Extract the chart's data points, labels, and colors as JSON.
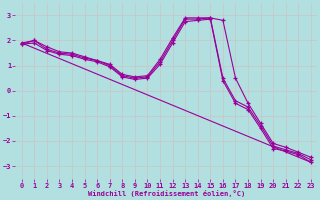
{
  "xlabel": "Windchill (Refroidissement éolien,°C)",
  "bg_color": "#b2e0e0",
  "grid_color": "#c8c8c8",
  "line_color": "#990099",
  "xlim": [
    -0.5,
    23.5
  ],
  "ylim": [
    -3.5,
    3.5
  ],
  "yticks": [
    -3,
    -2,
    -1,
    0,
    1,
    2,
    3
  ],
  "xticks": [
    0,
    1,
    2,
    3,
    4,
    5,
    6,
    7,
    8,
    9,
    10,
    11,
    12,
    13,
    14,
    15,
    16,
    17,
    18,
    19,
    20,
    21,
    22,
    23
  ],
  "series": [
    {
      "x": [
        0,
        1,
        2,
        3,
        4,
        5,
        6,
        7,
        8,
        9,
        10,
        11,
        12,
        13,
        14,
        15,
        16,
        17,
        18,
        19,
        20,
        21,
        22,
        23
      ],
      "y": [
        1.9,
        2.0,
        1.75,
        1.55,
        1.5,
        1.35,
        1.2,
        1.05,
        0.65,
        0.55,
        0.6,
        1.25,
        2.1,
        2.9,
        2.9,
        2.9,
        2.8,
        0.5,
        -0.5,
        -1.3,
        -2.1,
        -2.25,
        -2.45,
        -2.65
      ],
      "markers": true
    },
    {
      "x": [
        0,
        1,
        2,
        3,
        4,
        5,
        6,
        7,
        8,
        9,
        10,
        11,
        12,
        13,
        14,
        15,
        16,
        17,
        18,
        19,
        20,
        21,
        22,
        23
      ],
      "y": [
        1.85,
        2.0,
        1.65,
        1.5,
        1.45,
        1.3,
        1.2,
        1.0,
        0.6,
        0.5,
        0.55,
        1.15,
        2.0,
        2.85,
        2.85,
        2.9,
        0.5,
        -0.4,
        -0.65,
        -1.4,
        -2.2,
        -2.35,
        -2.5,
        -2.75
      ],
      "markers": true
    },
    {
      "x": [
        0,
        1,
        2,
        3,
        4,
        5,
        6,
        7,
        8,
        9,
        10,
        11,
        12,
        13,
        14,
        15,
        16,
        17,
        18,
        19,
        20,
        21,
        22,
        23
      ],
      "y": [
        1.85,
        1.9,
        1.6,
        1.45,
        1.4,
        1.25,
        1.15,
        0.95,
        0.55,
        0.45,
        0.5,
        1.05,
        1.9,
        2.75,
        2.8,
        2.85,
        0.4,
        -0.5,
        -0.75,
        -1.5,
        -2.3,
        -2.4,
        -2.55,
        -2.85
      ],
      "markers": true
    },
    {
      "x": [
        0,
        23
      ],
      "y": [
        1.9,
        -2.85
      ],
      "markers": false
    }
  ]
}
